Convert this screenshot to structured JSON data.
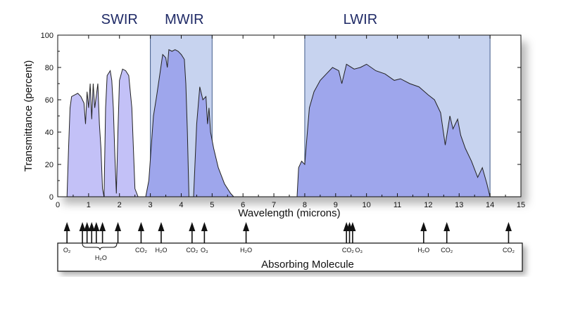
{
  "chart_data": {
    "type": "area",
    "xlabel": "Wavelength (microns)",
    "ylabel": "Transmittance (percent)",
    "xlim": [
      0,
      15
    ],
    "ylim": [
      0,
      100
    ],
    "xticks": [
      0,
      1,
      2,
      3,
      4,
      5,
      6,
      7,
      8,
      9,
      10,
      11,
      12,
      13,
      14,
      15
    ],
    "yticks": [
      0,
      20,
      40,
      60,
      80,
      100
    ],
    "bands": [
      {
        "name": "SWIR",
        "label_at": 2.0
      },
      {
        "name": "MWIR",
        "range": [
          3,
          5
        ],
        "label_at": 4.1
      },
      {
        "name": "LWIR",
        "range": [
          8,
          14
        ],
        "label_at": 9.8
      }
    ],
    "series": [
      {
        "points": [
          [
            0.3,
            0
          ],
          [
            0.35,
            30
          ],
          [
            0.4,
            55
          ],
          [
            0.45,
            62
          ],
          [
            0.55,
            63
          ],
          [
            0.65,
            64
          ],
          [
            0.75,
            62
          ],
          [
            0.85,
            58
          ],
          [
            0.9,
            45
          ],
          [
            0.95,
            65
          ],
          [
            1.0,
            55
          ],
          [
            1.05,
            70
          ],
          [
            1.1,
            48
          ],
          [
            1.15,
            70
          ],
          [
            1.2,
            55
          ],
          [
            1.3,
            70
          ],
          [
            1.35,
            45
          ],
          [
            1.4,
            30
          ],
          [
            1.45,
            5
          ],
          [
            1.5,
            0
          ]
        ]
      },
      {
        "points": [
          [
            1.5,
            0
          ],
          [
            1.55,
            55
          ],
          [
            1.6,
            75
          ],
          [
            1.7,
            78
          ],
          [
            1.75,
            72
          ],
          [
            1.8,
            55
          ],
          [
            1.85,
            25
          ],
          [
            1.9,
            2
          ],
          [
            1.95,
            40
          ],
          [
            2.0,
            72
          ],
          [
            2.1,
            79
          ],
          [
            2.2,
            78
          ],
          [
            2.3,
            75
          ],
          [
            2.4,
            55
          ],
          [
            2.5,
            5
          ],
          [
            2.6,
            0
          ]
        ]
      },
      {
        "points": [
          [
            2.85,
            0
          ],
          [
            2.95,
            10
          ],
          [
            3.1,
            50
          ],
          [
            3.2,
            62
          ],
          [
            3.3,
            75
          ],
          [
            3.4,
            88
          ],
          [
            3.5,
            86
          ],
          [
            3.55,
            80
          ],
          [
            3.6,
            91
          ],
          [
            3.7,
            90
          ],
          [
            3.8,
            91
          ],
          [
            3.9,
            90
          ],
          [
            4.0,
            88
          ],
          [
            4.1,
            85
          ],
          [
            4.15,
            70
          ],
          [
            4.2,
            40
          ],
          [
            4.25,
            0
          ],
          [
            4.4,
            0
          ],
          [
            4.5,
            45
          ],
          [
            4.6,
            68
          ],
          [
            4.7,
            60
          ],
          [
            4.8,
            62
          ],
          [
            4.85,
            45
          ],
          [
            4.9,
            55
          ],
          [
            4.95,
            40
          ],
          [
            5.05,
            30
          ],
          [
            5.2,
            18
          ],
          [
            5.4,
            8
          ],
          [
            5.6,
            2
          ],
          [
            5.7,
            0
          ]
        ]
      },
      {
        "points": [
          [
            7.75,
            0
          ],
          [
            7.8,
            18
          ],
          [
            7.9,
            22
          ],
          [
            8.0,
            20
          ],
          [
            8.05,
            32
          ],
          [
            8.15,
            55
          ],
          [
            8.3,
            65
          ],
          [
            8.5,
            72
          ],
          [
            8.7,
            76
          ],
          [
            8.9,
            80
          ],
          [
            9.1,
            78
          ],
          [
            9.2,
            70
          ],
          [
            9.35,
            82
          ],
          [
            9.6,
            79
          ],
          [
            9.8,
            80
          ],
          [
            10.0,
            82
          ],
          [
            10.3,
            78
          ],
          [
            10.6,
            76
          ],
          [
            10.9,
            72
          ],
          [
            11.1,
            73
          ],
          [
            11.4,
            70
          ],
          [
            11.7,
            68
          ],
          [
            12.0,
            63
          ],
          [
            12.2,
            60
          ],
          [
            12.4,
            52
          ],
          [
            12.55,
            32
          ],
          [
            12.7,
            50
          ],
          [
            12.8,
            42
          ],
          [
            12.95,
            48
          ],
          [
            13.05,
            38
          ],
          [
            13.2,
            30
          ],
          [
            13.4,
            22
          ],
          [
            13.6,
            12
          ],
          [
            13.75,
            18
          ],
          [
            13.9,
            8
          ],
          [
            14.0,
            0
          ]
        ]
      }
    ]
  },
  "absorbing_molecules": {
    "title": "Absorbing Molecule",
    "arrows_x": [
      0.3,
      0.8,
      0.95,
      1.1,
      1.25,
      1.45,
      1.95,
      2.7,
      3.35,
      4.35,
      4.75,
      6.1,
      9.35,
      9.45,
      9.55,
      11.85,
      12.6,
      14.6
    ],
    "labels": [
      {
        "text": "O₂",
        "x": 0.3
      },
      {
        "text": "H₂O",
        "x": 1.4
      },
      {
        "text": "CO₂",
        "x": 2.7
      },
      {
        "text": "H₂O",
        "x": 3.35
      },
      {
        "text": "CO₂",
        "x": 4.35
      },
      {
        "text": "O₃",
        "x": 4.75
      },
      {
        "text": "H₂O",
        "x": 6.1
      },
      {
        "text": "CO₂",
        "x": 9.4
      },
      {
        "text": "O₃",
        "x": 9.75
      },
      {
        "text": "H₂O",
        "x": 11.85
      },
      {
        "text": "CO₂",
        "x": 12.6
      },
      {
        "text": "CO₂",
        "x": 14.6
      }
    ]
  },
  "colors": {
    "curve_fill": "#9ea6ec",
    "swir_fill": "#c3c1f7",
    "band_fill": "#c7d3ef",
    "band_stroke": "#3f5a8a",
    "band_label": "#1f2a66"
  }
}
